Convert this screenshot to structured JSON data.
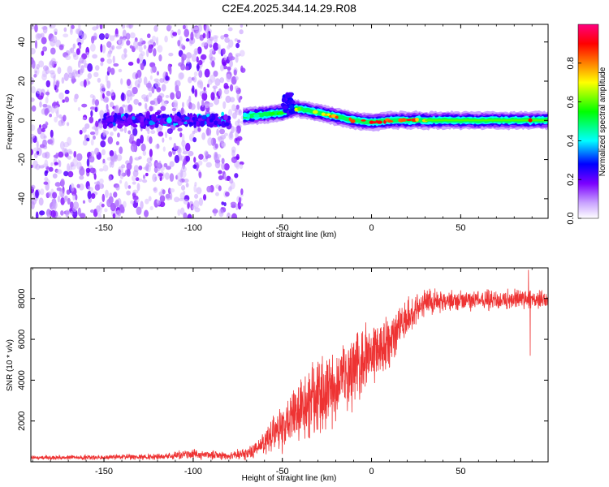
{
  "figure": {
    "title": "C2E4.2025.344.14.29.R08"
  },
  "chart_data": [
    {
      "type": "heatmap",
      "name": "spectrogram",
      "xlabel": "Height of straight line (km)",
      "ylabel": "Frequency (Hz)",
      "xlim": [
        -191,
        99
      ],
      "ylim": [
        -50,
        49
      ],
      "xticks": [
        -150,
        -100,
        -50,
        0,
        50
      ],
      "yticks": [
        -40,
        -20,
        0,
        20,
        40
      ],
      "colorbar": {
        "label": "Normalized spectral amplitude",
        "range": [
          0,
          1
        ],
        "ticks": [
          "0.0",
          "0.2",
          "0.4",
          "0.6",
          "0.8"
        ],
        "colormap": [
          "#ffffff",
          "#c9a3ff",
          "#7b00ff",
          "#0000ff",
          "#00ffff",
          "#00ff00",
          "#ffff00",
          "#ff8000",
          "#ff0000",
          "#ff007f"
        ]
      },
      "noise_region_x": [
        -191,
        -72
      ],
      "ridge": [
        {
          "x": -72,
          "f": 2,
          "amp": 0.45
        },
        {
          "x": -60,
          "f": 3,
          "amp": 0.55
        },
        {
          "x": -50,
          "f": 4,
          "amp": 0.6
        },
        {
          "x": -42,
          "f": 6,
          "amp": 0.65
        },
        {
          "x": -30,
          "f": 4,
          "amp": 0.75
        },
        {
          "x": -20,
          "f": 2,
          "amp": 0.85
        },
        {
          "x": -10,
          "f": 0,
          "amp": 0.88
        },
        {
          "x": 0,
          "f": -1,
          "amp": 0.9
        },
        {
          "x": 10,
          "f": 0,
          "amp": 0.88
        },
        {
          "x": 25,
          "f": 0,
          "amp": 0.85
        },
        {
          "x": 50,
          "f": 0,
          "amp": 0.55
        },
        {
          "x": 75,
          "f": 0,
          "amp": 0.5
        },
        {
          "x": 99,
          "f": 0,
          "amp": 0.5
        }
      ]
    },
    {
      "type": "line",
      "name": "snr",
      "xlabel": "Height of straight line (km)",
      "ylabel": "SNR (10 * v/v)",
      "xlim": [
        -191,
        99
      ],
      "ylim": [
        0,
        9500
      ],
      "xticks": [
        -150,
        -100,
        -50,
        0,
        50
      ],
      "yticks": [
        2000,
        4000,
        6000,
        8000
      ],
      "color": "#ee3333",
      "envelope": [
        {
          "x": -191,
          "mean": 200,
          "spread": 100
        },
        {
          "x": -120,
          "mean": 250,
          "spread": 150
        },
        {
          "x": -100,
          "mean": 350,
          "spread": 250
        },
        {
          "x": -80,
          "mean": 300,
          "spread": 200
        },
        {
          "x": -70,
          "mean": 400,
          "spread": 300
        },
        {
          "x": -60,
          "mean": 1000,
          "spread": 700
        },
        {
          "x": -50,
          "mean": 1800,
          "spread": 1200
        },
        {
          "x": -40,
          "mean": 2500,
          "spread": 1600
        },
        {
          "x": -30,
          "mean": 3200,
          "spread": 2000
        },
        {
          "x": -20,
          "mean": 3800,
          "spread": 2000
        },
        {
          "x": -10,
          "mean": 4500,
          "spread": 1800
        },
        {
          "x": 0,
          "mean": 5200,
          "spread": 1600
        },
        {
          "x": 10,
          "mean": 6000,
          "spread": 1400
        },
        {
          "x": 20,
          "mean": 7000,
          "spread": 1000
        },
        {
          "x": 30,
          "mean": 7800,
          "spread": 600
        },
        {
          "x": 50,
          "mean": 7900,
          "spread": 500
        },
        {
          "x": 70,
          "mean": 7950,
          "spread": 500
        },
        {
          "x": 85,
          "mean": 8000,
          "spread": 500
        },
        {
          "x": 99,
          "mean": 7900,
          "spread": 450
        }
      ],
      "spikes": [
        {
          "x": 88,
          "y": 9400
        },
        {
          "x": 89,
          "y": 5200
        }
      ]
    }
  ]
}
